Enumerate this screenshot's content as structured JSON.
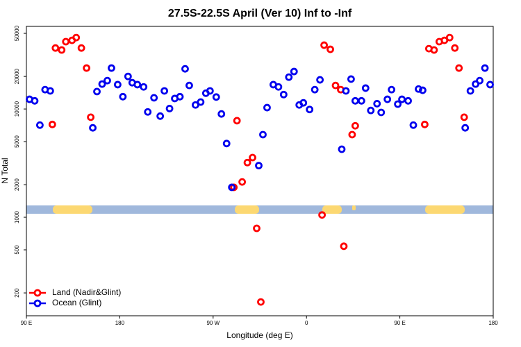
{
  "chart_data": {
    "type": "scatter",
    "title": "27.5S-22.5S April (Ver 10)   Inf to -Inf",
    "x_label": "Longitude (deg E)",
    "y_label": "N Total",
    "log_y": true,
    "legend": "lower left",
    "xlim": [
      90,
      540
    ],
    "xticks": [
      {
        "value": 90,
        "label": "90 E"
      },
      {
        "value": 180,
        "label": "180"
      },
      {
        "value": 270,
        "label": "90 W"
      },
      {
        "value": 360,
        "label": "0"
      },
      {
        "value": 450,
        "label": "90 E"
      },
      {
        "value": 540,
        "label": "180"
      }
    ],
    "ylim": [
      123,
      58000
    ],
    "yticks": [
      200,
      500,
      1000,
      2000,
      5000,
      10000,
      20000,
      50000
    ],
    "series": [
      {
        "name": "Land (Nadir&Glint)",
        "color": "#ff0000",
        "x": [
          115,
          118,
          124,
          128,
          134,
          138,
          143,
          148,
          152,
          290,
          293,
          298,
          303,
          308,
          312,
          316,
          375,
          377,
          383,
          388,
          393,
          396,
          404,
          407,
          474,
          478,
          483,
          488,
          493,
          498,
          503,
          507,
          512
        ],
        "values": [
          7200,
          36600,
          35100,
          41900,
          43100,
          45700,
          36600,
          23900,
          8400,
          1890,
          7800,
          2120,
          3200,
          3560,
          790,
          165,
          1050,
          38900,
          35600,
          16500,
          15100,
          540,
          5800,
          7000,
          7200,
          36100,
          35100,
          41900,
          43100,
          45700,
          36600,
          23900,
          8400
        ]
      },
      {
        "name": "Ocean (Glint)",
        "color": "#0000ee",
        "x": [
          93,
          98,
          103,
          108,
          113,
          154,
          158,
          163,
          168,
          172,
          178,
          183,
          188,
          192,
          197,
          203,
          207,
          213,
          219,
          223,
          228,
          233,
          238,
          243,
          247,
          253,
          258,
          263,
          267,
          273,
          278,
          283,
          288,
          314,
          318,
          322,
          328,
          333,
          338,
          343,
          348,
          353,
          357,
          363,
          368,
          373,
          394,
          398,
          403,
          407,
          413,
          417,
          422,
          428,
          432,
          438,
          442,
          448,
          452,
          458,
          463,
          468,
          472,
          513,
          518,
          523,
          527,
          532,
          537
        ],
        "values": [
          12300,
          11900,
          7100,
          15100,
          14700,
          6700,
          14500,
          17000,
          18300,
          23900,
          16800,
          13000,
          20000,
          17500,
          16800,
          16000,
          9400,
          12700,
          8600,
          14700,
          10100,
          12500,
          13000,
          23500,
          16500,
          10900,
          11600,
          14000,
          14700,
          12900,
          9000,
          4800,
          1890,
          3000,
          5800,
          10300,
          16800,
          16000,
          13600,
          19700,
          22200,
          10900,
          11400,
          9900,
          15100,
          18600,
          4250,
          14700,
          18900,
          11900,
          11900,
          15600,
          9700,
          11200,
          9300,
          12300,
          15100,
          11100,
          12300,
          11900,
          7100,
          15300,
          14900,
          6700,
          14700,
          17000,
          18300,
          23900,
          16800
        ]
      }
    ]
  }
}
